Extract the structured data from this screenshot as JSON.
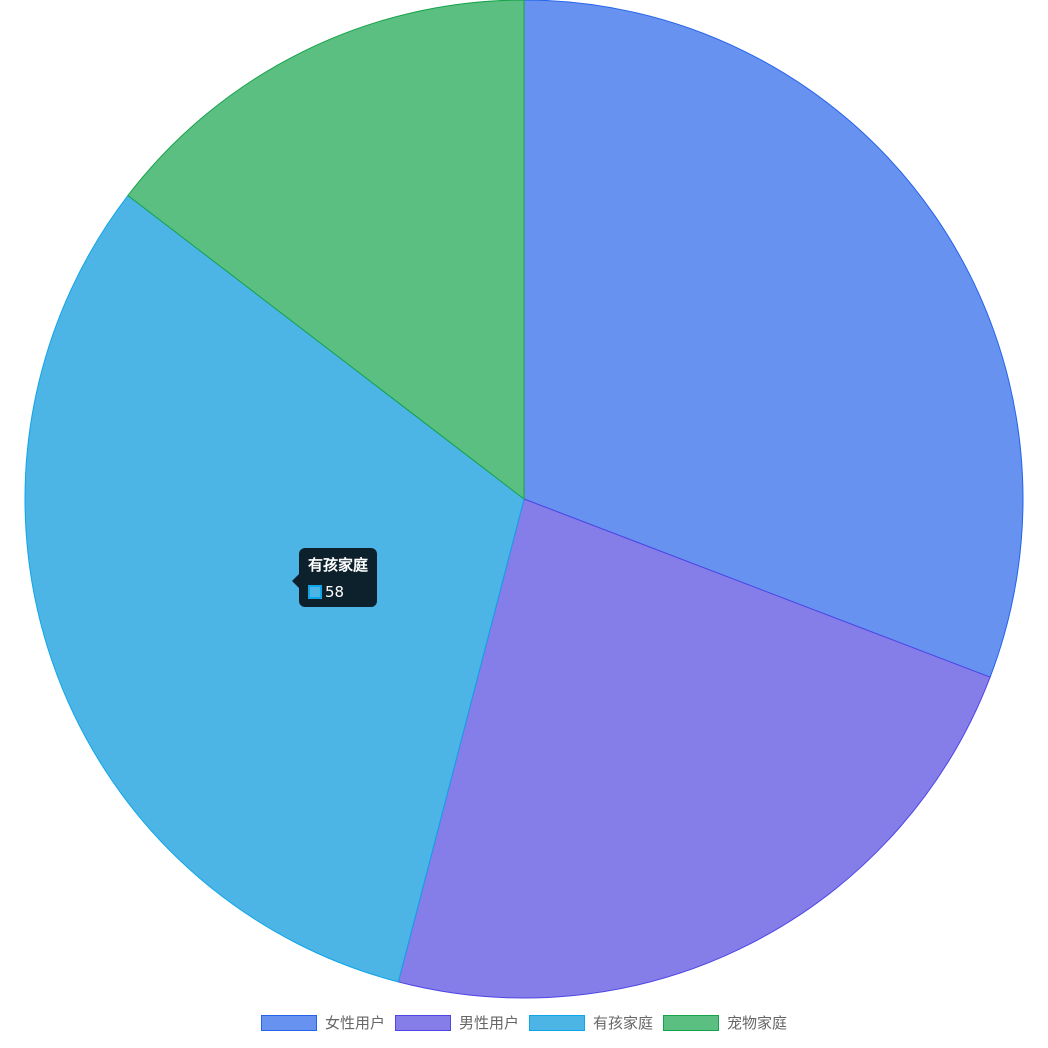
{
  "chart_data": {
    "type": "pie",
    "categories": [
      "女性用户",
      "男性用户",
      "有孩家庭",
      "宠物家庭"
    ],
    "values": [
      57,
      43,
      58,
      27
    ],
    "colors": [
      "#6792f0",
      "#857de8",
      "#4db5e6",
      "#5cbf82"
    ],
    "border_colors": [
      "#2563eb",
      "#4f46e5",
      "#0ea5e9",
      "#16a34a"
    ],
    "legend_position": "bottom",
    "tooltip": {
      "title": "有孩家庭",
      "value": "58",
      "series_index": 2
    }
  }
}
